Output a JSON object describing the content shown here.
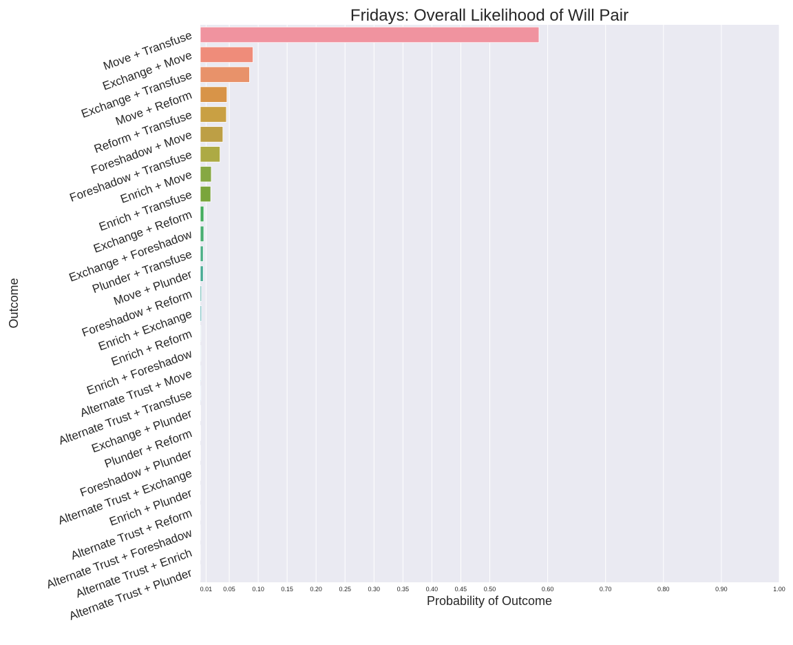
{
  "chart_data": {
    "type": "bar",
    "orientation": "horizontal",
    "title": "Fridays: Overall Likelihood of Will Pair",
    "xlabel": "Probability of Outcome",
    "ylabel": "Outcome",
    "xlim": [
      0,
      1.0
    ],
    "xticks": [
      0.01,
      0.05,
      0.1,
      0.15,
      0.2,
      0.25,
      0.3,
      0.35,
      0.4,
      0.45,
      0.5,
      0.6,
      0.7,
      0.8,
      0.9,
      1.0
    ],
    "xtick_labels": [
      "0.01",
      "0.05",
      "0.10",
      "0.15",
      "0.20",
      "0.25",
      "0.30",
      "0.35",
      "0.40",
      "0.45",
      "0.50",
      "0.60",
      "0.70",
      "0.80",
      "0.90",
      "1.00"
    ],
    "grid": true,
    "legend": "none",
    "categories": [
      "Move + Transfuse",
      "Exchange + Move",
      "Exchange + Transfuse",
      "Move + Reform",
      "Reform + Transfuse",
      "Foreshadow + Move",
      "Foreshadow + Transfuse",
      "Enrich + Move",
      "Enrich + Transfuse",
      "Exchange + Reform",
      "Exchange + Foreshadow",
      "Plunder + Transfuse",
      "Move + Plunder",
      "Foreshadow + Reform",
      "Enrich + Exchange",
      "Enrich + Reform",
      "Enrich + Foreshadow",
      "Alternate Trust + Move",
      "Alternate Trust + Transfuse",
      "Exchange + Plunder",
      "Plunder + Reform",
      "Foreshadow + Plunder",
      "Alternate Trust + Exchange",
      "Enrich + Plunder",
      "Alternate Trust + Reform",
      "Alternate Trust + Foreshadow",
      "Alternate Trust + Enrich",
      "Alternate Trust + Plunder"
    ],
    "values": [
      0.585,
      0.091,
      0.085,
      0.046,
      0.045,
      0.039,
      0.034,
      0.019,
      0.018,
      0.006,
      0.006,
      0.005,
      0.005,
      0.002,
      0.002,
      0.001,
      0.001,
      0.001,
      0.001,
      0.0005,
      0.0004,
      0.0003,
      0.0003,
      0.0002,
      0.0002,
      0.0001,
      0.0001,
      0.0001
    ],
    "colors": [
      "#f0939f",
      "#ef8c7a",
      "#e8926a",
      "#d89448",
      "#c9a043",
      "#bd9f45",
      "#adaa44",
      "#86a843",
      "#7aa53c",
      "#45ad5f",
      "#49ae72",
      "#4aae85",
      "#47aa93",
      "#43a79e",
      "#44a6a8",
      "#46a4b3",
      "#48a3bd",
      "#4ba0c9",
      "#519dd4",
      "#6b97e3",
      "#8a92ea",
      "#a88bea",
      "#c082e6",
      "#d47be0",
      "#e175d2",
      "#ea76bd",
      "#ee7fae",
      "#ef889f"
    ]
  }
}
